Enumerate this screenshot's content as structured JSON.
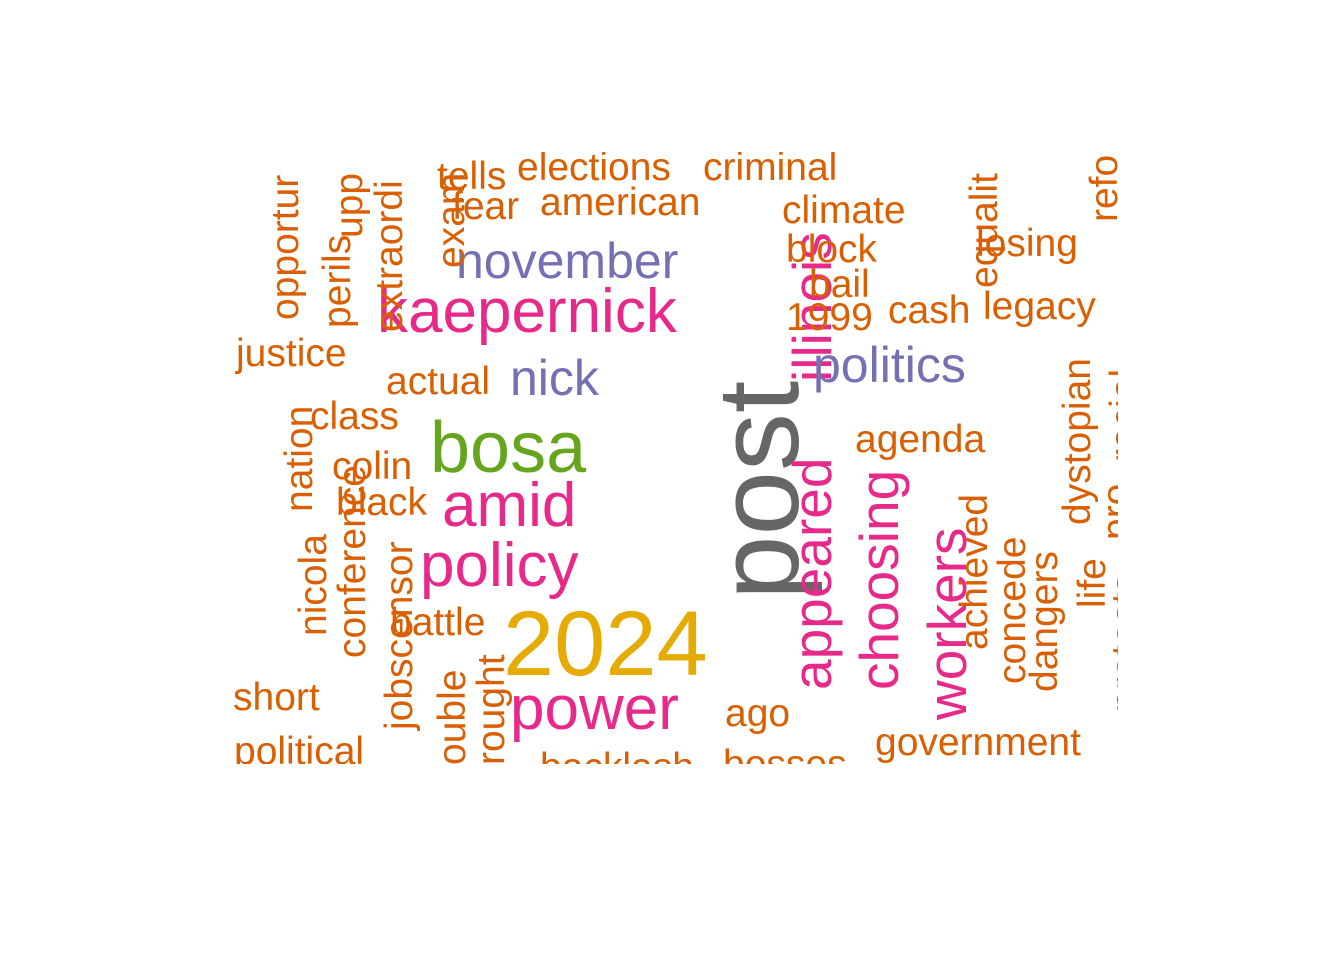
{
  "colors": {
    "orange": "#D95F02",
    "purple": "#7570B3",
    "magenta": "#E7298A",
    "green": "#66A61E",
    "gold": "#E6AB02",
    "gray": "#666666"
  },
  "words": [
    {
      "text": "post",
      "color": "gray"
    },
    {
      "text": "2024",
      "color": "gold"
    },
    {
      "text": "bosa",
      "color": "green"
    },
    {
      "text": "kaepernick",
      "color": "magenta"
    },
    {
      "text": "illinois",
      "color": "magenta"
    },
    {
      "text": "appeared",
      "color": "magenta"
    },
    {
      "text": "choosing",
      "color": "magenta"
    },
    {
      "text": "workers",
      "color": "magenta"
    },
    {
      "text": "amid",
      "color": "magenta"
    },
    {
      "text": "policy",
      "color": "magenta"
    },
    {
      "text": "power",
      "color": "magenta"
    },
    {
      "text": "november",
      "color": "purple"
    },
    {
      "text": "nick",
      "color": "purple"
    },
    {
      "text": "politics",
      "color": "purple"
    },
    {
      "text": "opportur",
      "color": "orange"
    },
    {
      "text": "upp",
      "color": "orange"
    },
    {
      "text": "perils",
      "color": "orange"
    },
    {
      "text": "extraordi",
      "color": "orange"
    },
    {
      "text": "exam",
      "color": "orange"
    },
    {
      "text": "tells",
      "color": "orange"
    },
    {
      "text": "elections",
      "color": "orange"
    },
    {
      "text": "criminal",
      "color": "orange"
    },
    {
      "text": "fear",
      "color": "orange"
    },
    {
      "text": "american",
      "color": "orange"
    },
    {
      "text": "climate",
      "color": "orange"
    },
    {
      "text": "equalit",
      "color": "orange"
    },
    {
      "text": "refo",
      "color": "orange"
    },
    {
      "text": "losing",
      "color": "orange"
    },
    {
      "text": "block",
      "color": "orange"
    },
    {
      "text": "bail",
      "color": "orange"
    },
    {
      "text": "1999",
      "color": "orange"
    },
    {
      "text": "cash",
      "color": "orange"
    },
    {
      "text": "legacy",
      "color": "orange"
    },
    {
      "text": "justice",
      "color": "orange"
    },
    {
      "text": "actual",
      "color": "orange"
    },
    {
      "text": "class",
      "color": "orange"
    },
    {
      "text": "nation",
      "color": "orange"
    },
    {
      "text": "colin",
      "color": "orange"
    },
    {
      "text": "conference",
      "color": "orange"
    },
    {
      "text": "black",
      "color": "orange"
    },
    {
      "text": "nicola",
      "color": "orange"
    },
    {
      "text": "jobscensor",
      "color": "orange"
    },
    {
      "text": "battle",
      "color": "orange"
    },
    {
      "text": "short",
      "color": "orange"
    },
    {
      "text": "ouble",
      "color": "orange"
    },
    {
      "text": "rought",
      "color": "orange"
    },
    {
      "text": "political",
      "color": "orange"
    },
    {
      "text": "backlash",
      "color": "orange"
    },
    {
      "text": "bosses",
      "color": "orange"
    },
    {
      "text": "ago",
      "color": "orange"
    },
    {
      "text": "agenda",
      "color": "orange"
    },
    {
      "text": "dystopian",
      "color": "orange"
    },
    {
      "text": "racial",
      "color": "orange"
    },
    {
      "text": "achieved",
      "color": "orange"
    },
    {
      "text": "concede",
      "color": "orange"
    },
    {
      "text": "dangers",
      "color": "orange"
    },
    {
      "text": "life",
      "color": "orange"
    },
    {
      "text": "pro",
      "color": "orange"
    },
    {
      "text": "protests",
      "color": "orange"
    },
    {
      "text": "government",
      "color": "orange"
    }
  ]
}
